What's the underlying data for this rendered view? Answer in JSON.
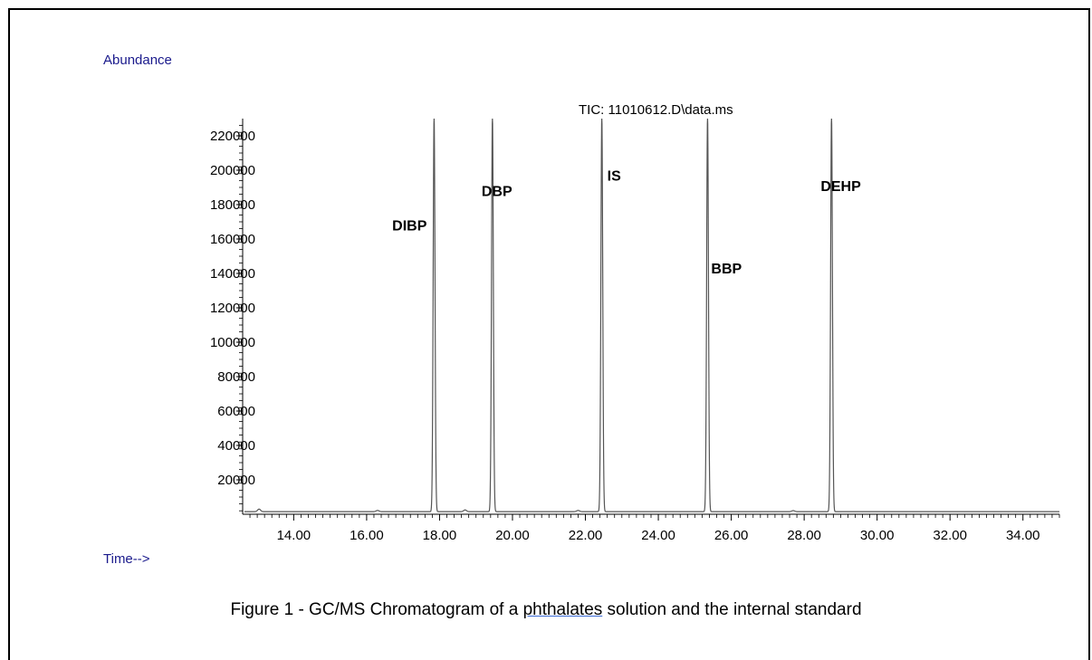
{
  "caption": {
    "before": "Figure 1 - GC/MS Chromatogram of a ",
    "underlined": "phthalates",
    "after": " solution and the internal standard"
  },
  "chart_data": {
    "type": "line",
    "title": "TIC: 11010612.D\\data.ms",
    "xlabel": "Time-->",
    "ylabel": "Abundance",
    "xlim": [
      12.6,
      35.0
    ],
    "ylim": [
      0,
      230000
    ],
    "x_ticks": [
      "14.00",
      "16.00",
      "18.00",
      "20.00",
      "22.00",
      "24.00",
      "26.00",
      "28.00",
      "30.00",
      "32.00",
      "34.00"
    ],
    "y_ticks": [
      "20000",
      "40000",
      "60000",
      "80000",
      "100000",
      "120000",
      "140000",
      "160000",
      "180000",
      "200000",
      "220000"
    ],
    "grid": false,
    "line_color": "#555555",
    "series": [
      {
        "peaks": [
          {
            "label": "DIBP",
            "rt": 17.85,
            "height": 230000
          },
          {
            "label": "DBP",
            "rt": 19.45,
            "height": 230000
          },
          {
            "label": "IS",
            "rt": 22.45,
            "height": 230000
          },
          {
            "label": "BBP",
            "rt": 25.35,
            "height": 230000
          },
          {
            "label": "DEHP",
            "rt": 28.75,
            "height": 230000
          }
        ],
        "minor_peaks": [
          {
            "rt": 13.05,
            "height": 1500
          },
          {
            "rt": 16.3,
            "height": 700
          },
          {
            "rt": 18.7,
            "height": 1000
          },
          {
            "rt": 21.8,
            "height": 700
          },
          {
            "rt": 27.7,
            "height": 600
          }
        ]
      }
    ]
  }
}
